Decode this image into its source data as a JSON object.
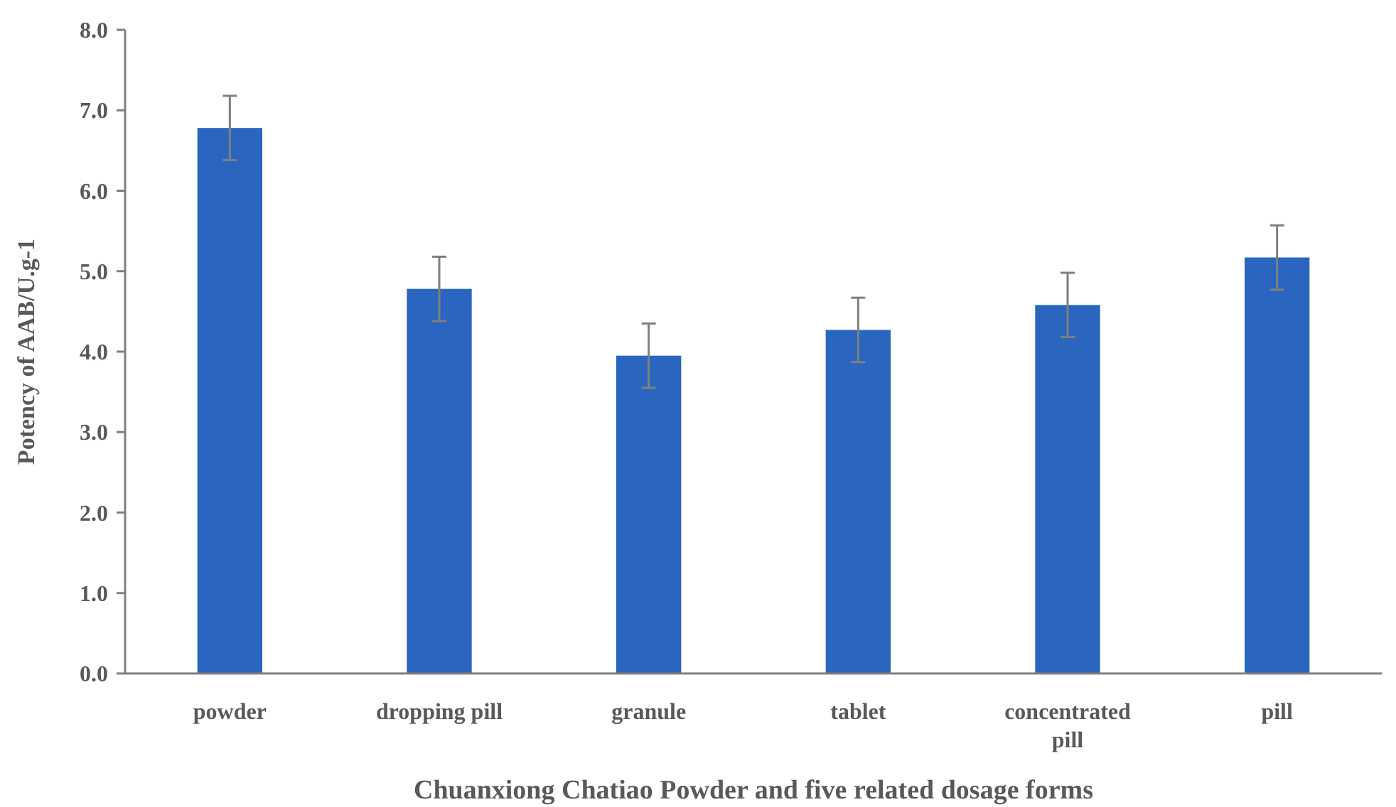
{
  "chart_data": {
    "type": "bar",
    "xlabel": "Chuanxiong Chatiao Powder and five related dosage forms",
    "ylabel": "Potency of AAB/U.g-1",
    "categories": [
      "powder",
      "dropping pill",
      "granule",
      "tablet",
      "concentrated pill",
      "pill"
    ],
    "values": [
      6.78,
      4.78,
      3.95,
      4.27,
      4.58,
      5.17
    ],
    "errors": [
      0.4,
      0.4,
      0.4,
      0.4,
      0.4,
      0.4
    ],
    "color": "#2a66bf",
    "ylim": [
      0,
      8
    ],
    "yticks": [
      {
        "value": 0,
        "label": "0.0"
      },
      {
        "value": 1,
        "label": "1.0"
      },
      {
        "value": 2,
        "label": "2.0"
      },
      {
        "value": 3,
        "label": "3.0"
      },
      {
        "value": 4,
        "label": "4.0"
      },
      {
        "value": 5,
        "label": "5.0"
      },
      {
        "value": 6,
        "label": "6.0"
      },
      {
        "value": 7,
        "label": "7.0"
      },
      {
        "value": 8,
        "label": "8.0"
      }
    ],
    "grid": false
  }
}
